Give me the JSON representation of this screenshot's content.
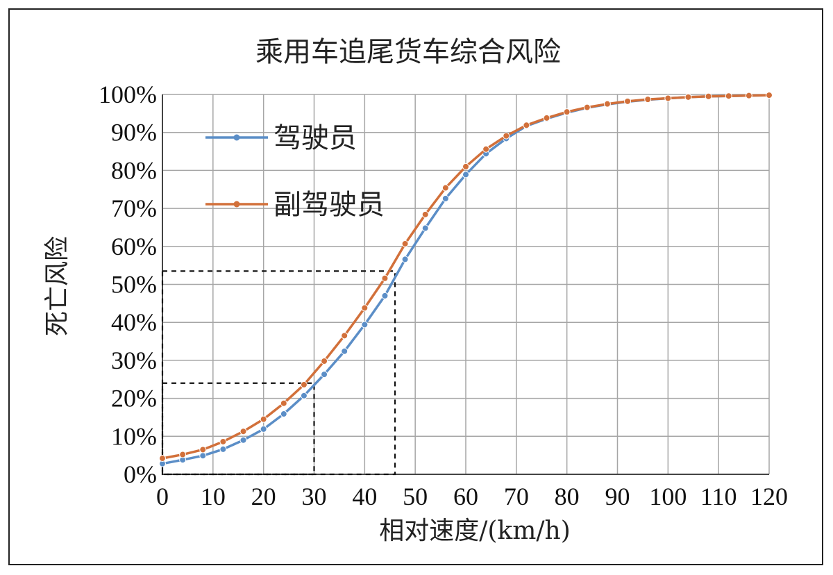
{
  "chart_data": {
    "type": "line",
    "title": "乘用车追尾货车综合风险",
    "xlabel": "相对速度/(km/h)",
    "ylabel": "死亡风险",
    "xlim": [
      0,
      120
    ],
    "ylim": [
      0,
      100
    ],
    "x_ticks": [
      "0",
      "10",
      "20",
      "30",
      "40",
      "50",
      "60",
      "70",
      "80",
      "90",
      "100",
      "110",
      "120"
    ],
    "y_ticks": [
      "0%",
      "10%",
      "20%",
      "30%",
      "40%",
      "50%",
      "60%",
      "70%",
      "80%",
      "90%",
      "100%"
    ],
    "grid": true,
    "legend_position": "top-left",
    "x": [
      0,
      4,
      8,
      12,
      16,
      20,
      24,
      28,
      32,
      36,
      40,
      44,
      48,
      52,
      56,
      60,
      64,
      68,
      72,
      76,
      80,
      84,
      88,
      92,
      96,
      100,
      104,
      108,
      112,
      116,
      120
    ],
    "series": [
      {
        "name": "驾驶员",
        "color": "#5b8ec7",
        "values": [
          2.8,
          3.8,
          4.9,
          6.6,
          9.0,
          11.9,
          15.9,
          20.7,
          26.3,
          32.4,
          39.4,
          47.0,
          56.6,
          64.8,
          72.6,
          78.9,
          84.4,
          88.4,
          91.7,
          93.6,
          95.2,
          96.5,
          97.4,
          98.1,
          98.6,
          99.0,
          99.3,
          99.5,
          99.6,
          99.7,
          99.8
        ]
      },
      {
        "name": "副驾驶员",
        "color": "#d2703a",
        "values": [
          4.2,
          5.2,
          6.5,
          8.6,
          11.3,
          14.5,
          18.7,
          23.6,
          29.8,
          36.5,
          43.8,
          51.6,
          60.7,
          68.4,
          75.4,
          81.0,
          85.6,
          89.1,
          91.9,
          93.8,
          95.4,
          96.6,
          97.5,
          98.2,
          98.7,
          99.0,
          99.3,
          99.5,
          99.6,
          99.7,
          99.8
        ]
      }
    ],
    "reference_lines": [
      {
        "x": 30,
        "y": 24
      },
      {
        "x": 46,
        "y": 53.5
      }
    ]
  }
}
